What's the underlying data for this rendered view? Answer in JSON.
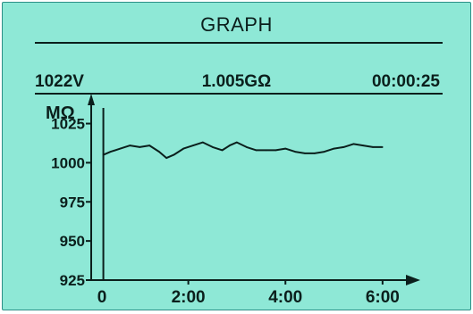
{
  "header": {
    "title": "GRAPH"
  },
  "status": {
    "voltage": "1022V",
    "resistance": "1.005GΩ",
    "elapsed": "00:00:25"
  },
  "colors": {
    "screen_bg": "#8ee8d6",
    "ink": "#0b1f1c"
  },
  "chart_data": {
    "type": "line",
    "ylabel": "MΩ",
    "xlabel": "",
    "xlim": [
      0,
      6.5
    ],
    "ylim": [
      925,
      1035
    ],
    "y_ticks": [
      925,
      950,
      975,
      1000,
      1025
    ],
    "y_tick_labels": [
      "925",
      "950",
      "975",
      "1000",
      "1025"
    ],
    "x_ticks": [
      0,
      2,
      4,
      6
    ],
    "x_tick_labels": [
      "0",
      "2:00",
      "4:00",
      "6:00"
    ],
    "start_marker_x": 0.25,
    "grid": false,
    "series": [
      {
        "x": [
          0.25,
          0.4,
          0.6,
          0.8,
          1.0,
          1.2,
          1.4,
          1.55,
          1.7,
          1.9,
          2.1,
          2.3,
          2.5,
          2.7,
          2.85,
          3.0,
          3.2,
          3.4,
          3.6,
          3.8,
          4.0,
          4.2,
          4.4,
          4.6,
          4.8,
          5.0,
          5.2,
          5.4,
          5.6,
          5.8,
          6.0
        ],
        "values": [
          1005,
          1007,
          1009,
          1011,
          1010,
          1011,
          1007,
          1003,
          1005,
          1009,
          1011,
          1013,
          1010,
          1008,
          1011,
          1013,
          1010,
          1008,
          1008,
          1008,
          1009,
          1007,
          1006,
          1006,
          1007,
          1009,
          1010,
          1012,
          1011,
          1010,
          1010
        ]
      }
    ]
  }
}
